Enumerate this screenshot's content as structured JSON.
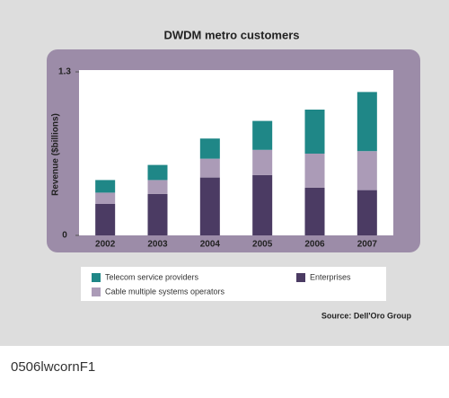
{
  "chart_data": {
    "type": "stacked-bar",
    "title": "DWDM metro customers",
    "y_label": "Revenue ($billions)",
    "categories": [
      "2002",
      "2003",
      "2004",
      "2005",
      "2006",
      "2007"
    ],
    "series": [
      {
        "name": "Enterprises",
        "color": "#4b3b63",
        "values": [
          0.25,
          0.33,
          0.46,
          0.48,
          0.38,
          0.36
        ]
      },
      {
        "name": "Cable multiple systems operators",
        "color": "#ab9bb7",
        "values": [
          0.09,
          0.11,
          0.15,
          0.2,
          0.27,
          0.31
        ]
      },
      {
        "name": "Telecom service providers",
        "color": "#1f8787",
        "values": [
          0.1,
          0.12,
          0.16,
          0.23,
          0.35,
          0.47
        ]
      }
    ],
    "ylim": [
      0,
      1.3
    ],
    "yticks": [
      0,
      1.3
    ],
    "source": "Source: Dell'Oro Group"
  },
  "caption": "0506lwcornF1"
}
